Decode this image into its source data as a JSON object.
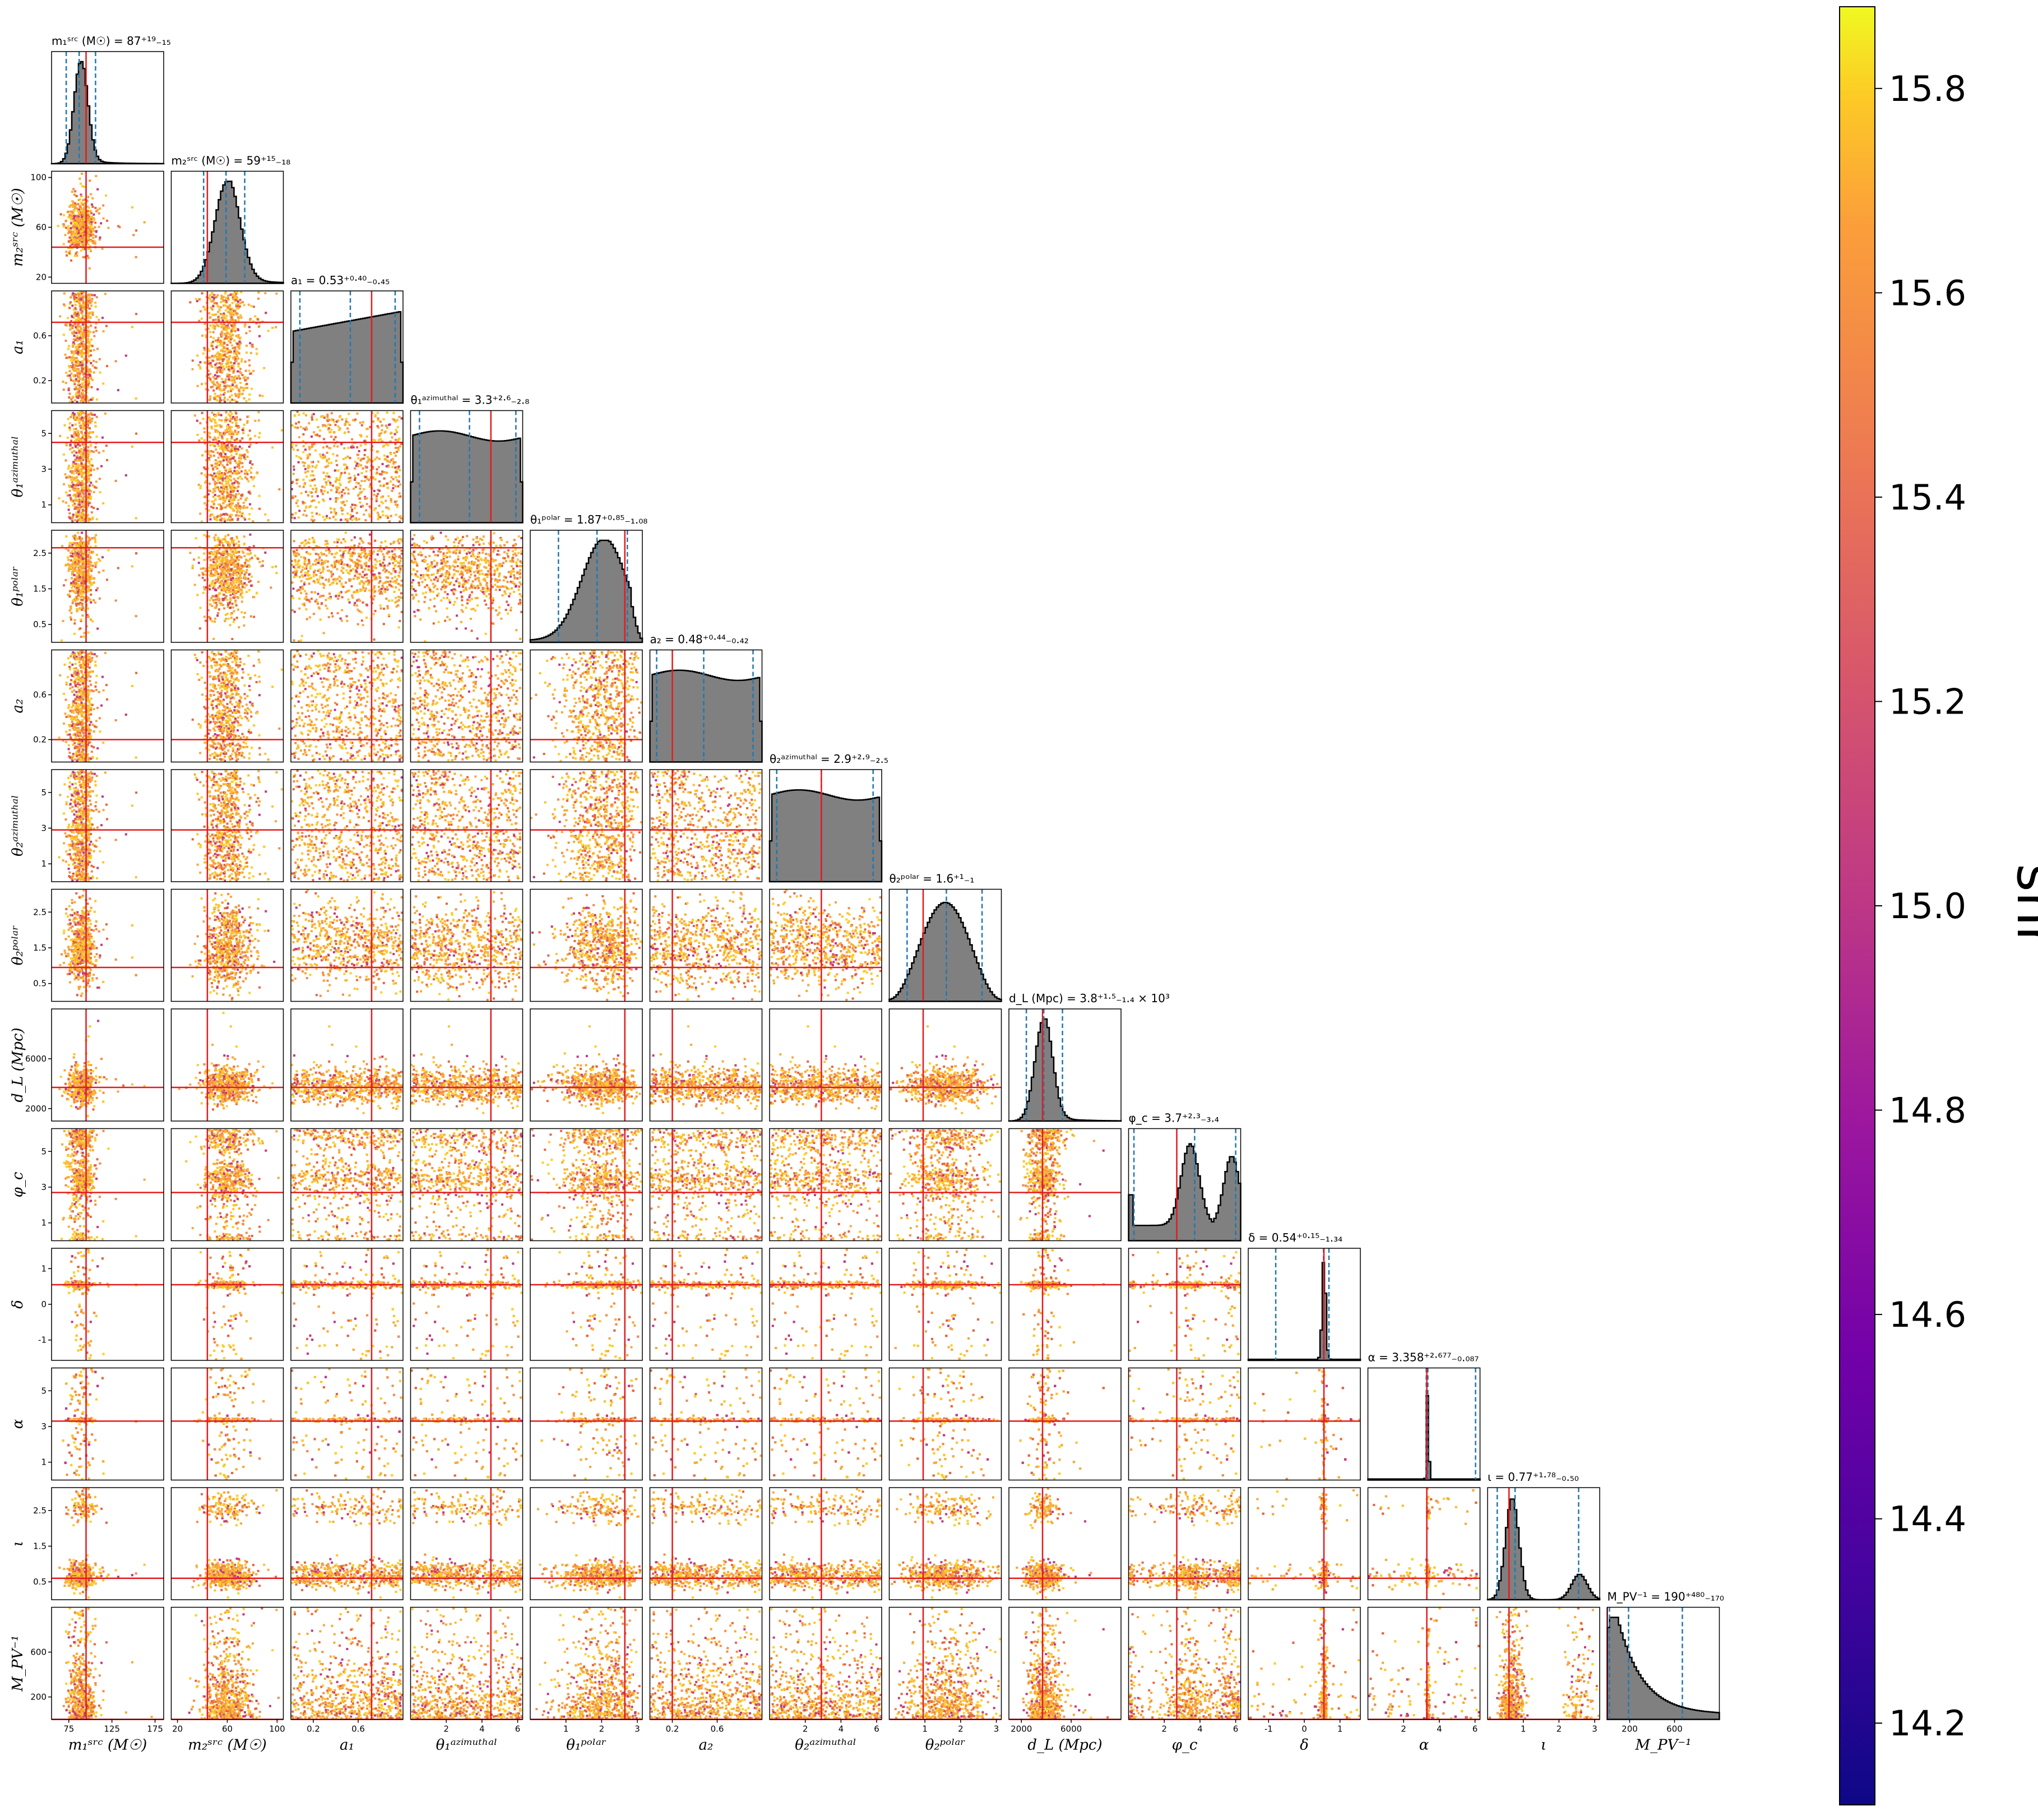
{
  "chart_data": {
    "type": "corner",
    "params": [
      {
        "label": "m₁ˢʳᶜ (M☉)",
        "title": "m₁ˢʳᶜ (M☉) = 87⁺¹⁹₋₁₅",
        "range": [
          55,
          185
        ],
        "ticks": [
          75,
          125,
          175
        ],
        "truth": 95,
        "median": 87,
        "q_lo": 72,
        "q_hi": 106,
        "hist": "peak",
        "peak_at": 89,
        "peak_w": 8
      },
      {
        "label": "m₂ˢʳᶜ (M☉)",
        "title": "m₂ˢʳᶜ (M☉) = 59⁺¹⁵₋₁₈",
        "range": [
          15,
          105
        ],
        "ticks": [
          20,
          60,
          100
        ],
        "truth": 44,
        "median": 59,
        "q_lo": 41,
        "q_hi": 74,
        "hist": "peak",
        "peak_at": 60,
        "peak_w": 10
      },
      {
        "label": "a₁",
        "title": "a₁ = 0.53⁺⁰·⁴⁰₋₀.₄₅",
        "range": [
          0,
          1
        ],
        "ticks": [
          0.2,
          0.6
        ],
        "truth": 0.72,
        "median": 0.53,
        "q_lo": 0.08,
        "q_hi": 0.93,
        "hist": "flat_rising"
      },
      {
        "label": "θ₁ᵃᶻⁱᵐᵘᵗʰᵃˡ",
        "title": "θ₁ᵃᶻⁱᵐᵘᵗʰᵃˡ = 3.3⁺²·⁶₋₂.₈",
        "range": [
          0,
          6.28
        ],
        "ticks": [
          2,
          4,
          6
        ],
        "truth": 4.5,
        "median": 3.3,
        "q_lo": 0.5,
        "q_hi": 5.9,
        "hist": "flat"
      },
      {
        "label": "θ₁ᵖᵒˡᵃʳ",
        "title": "θ₁ᵖᵒˡᵃʳ = 1.87⁺⁰·⁸⁵₋₁.₀₈",
        "range": [
          0,
          3.14
        ],
        "ticks": [
          1,
          2,
          3
        ],
        "truth": 2.65,
        "median": 1.87,
        "q_lo": 0.79,
        "q_hi": 2.72,
        "hist": "sine_skew"
      },
      {
        "label": "a₂",
        "title": "a₂ = 0.48⁺⁰·⁴⁴₋₀.₄₂",
        "range": [
          0,
          1
        ],
        "ticks": [
          0.2,
          0.6
        ],
        "truth": 0.2,
        "median": 0.48,
        "q_lo": 0.06,
        "q_hi": 0.92,
        "hist": "flat"
      },
      {
        "label": "θ₂ᵃᶻⁱᵐᵘᵗʰᵃˡ",
        "title": "θ₂ᵃᶻⁱᵐᵘᵗʰᵃˡ = 2.9⁺²·⁹₋₂.₅",
        "range": [
          0,
          6.28
        ],
        "ticks": [
          2,
          4,
          6
        ],
        "truth": 2.9,
        "median": 2.9,
        "q_lo": 0.4,
        "q_hi": 5.8,
        "hist": "flat"
      },
      {
        "label": "θ₂ᵖᵒˡᵃʳ",
        "title": "θ₂ᵖᵒˡᵃʳ = 1.6⁺¹₋₁",
        "range": [
          0,
          3.14
        ],
        "ticks": [
          1,
          2,
          3
        ],
        "truth": 0.95,
        "median": 1.6,
        "q_lo": 0.5,
        "q_hi": 2.6,
        "hist": "sine"
      },
      {
        "label": "d_L (Mpc)",
        "title": "d_L (Mpc) = 3.8⁺¹·⁵₋₁.₄ × 10³",
        "range": [
          1000,
          10000
        ],
        "ticks": [
          2000,
          6000
        ],
        "truth": 3700,
        "median": 3800,
        "q_lo": 2400,
        "q_hi": 5300,
        "hist": "peak",
        "peak_at": 3800,
        "peak_w": 700
      },
      {
        "label": "φ_c",
        "title": "φ_c = 3.7⁺²·³₋₃.₄",
        "range": [
          0,
          6.28
        ],
        "ticks": [
          2,
          4,
          6
        ],
        "truth": 2.7,
        "median": 3.7,
        "q_lo": 0.3,
        "q_hi": 6.0,
        "hist": "bimodal"
      },
      {
        "label": "δ",
        "title": "δ = 0.54⁺⁰·¹⁵₋₁.₃₄",
        "range": [
          -1.57,
          1.57
        ],
        "ticks": [
          -1,
          0,
          1
        ],
        "truth": 0.55,
        "median": 0.54,
        "q_lo": -0.8,
        "q_hi": 0.69,
        "hist": "spike",
        "peak_at": 0.55,
        "peak_w": 0.05
      },
      {
        "label": "α",
        "title": "α = 3.358⁺²·⁶⁷⁷₋₀.₀₈₇",
        "range": [
          0,
          6.28
        ],
        "ticks": [
          2,
          4,
          6
        ],
        "truth": 3.3,
        "median": 3.358,
        "q_lo": 3.27,
        "q_hi": 6.03,
        "hist": "spike",
        "peak_at": 3.36,
        "peak_w": 0.05
      },
      {
        "label": "ι",
        "title": "ι = 0.77⁺¹·⁷⁸₋₀.₅₀",
        "range": [
          0,
          3.14
        ],
        "ticks": [
          1,
          2,
          3
        ],
        "truth": 0.6,
        "median": 0.77,
        "q_lo": 0.27,
        "q_hi": 2.55,
        "hist": "double_peak"
      },
      {
        "label": "M_PV⁻¹",
        "title": "M_PV⁻¹ = 190⁺⁴⁸⁰₋₁₇₀",
        "range": [
          0,
          1000
        ],
        "ticks": [
          200,
          600
        ],
        "truth": 0,
        "median": 190,
        "q_lo": 20,
        "q_hi": 670,
        "hist": "decay"
      }
    ],
    "row_ticks": [
      null,
      [
        20,
        60,
        100
      ],
      [
        0.2,
        0.6
      ],
      [
        1,
        3,
        5
      ],
      [
        0.5,
        1.5,
        2.5
      ],
      [
        0.2,
        0.6
      ],
      [
        1,
        3,
        5
      ],
      [
        0.5,
        1.5,
        2.5
      ],
      [
        2000,
        6000
      ],
      [
        1,
        3,
        5
      ],
      [
        -1,
        0,
        1
      ],
      [
        1,
        3,
        5
      ],
      [
        0.5,
        1.5,
        2.5
      ],
      [
        200,
        600
      ]
    ],
    "colorbar": {
      "label": "snr",
      "colormap": "plasma",
      "range": [
        14.12,
        15.88
      ],
      "ticks": [
        "14.2",
        "14.4",
        "14.6",
        "14.8",
        "15.0",
        "15.2",
        "15.4",
        "15.6",
        "15.8"
      ]
    },
    "colors": {
      "truth_line": "#e41a1c",
      "quantile_line": "#1f77b4",
      "hist_fill": "#808080",
      "hist_edge": "#000000"
    }
  }
}
